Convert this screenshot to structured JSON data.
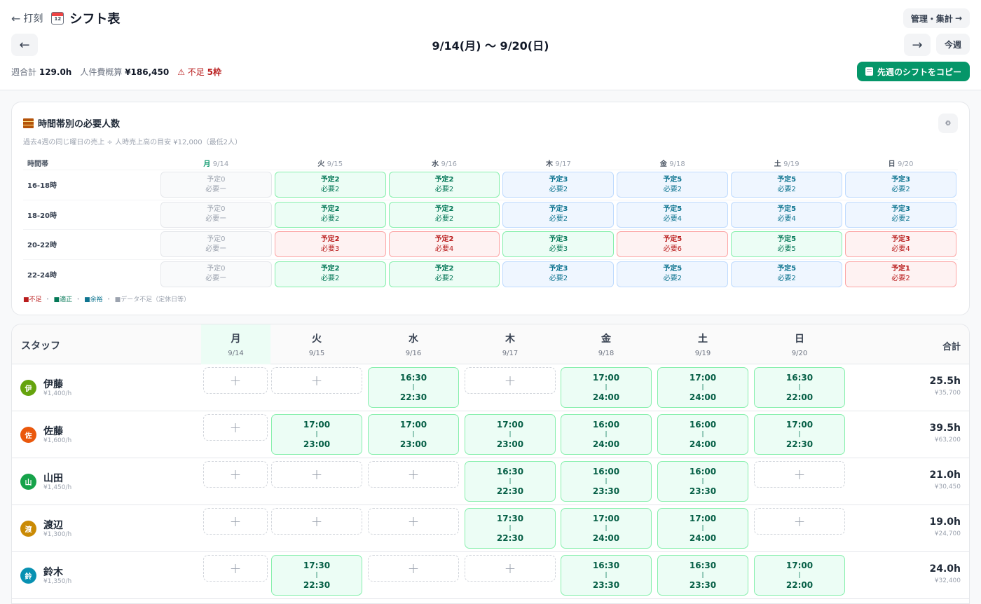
{
  "header": {
    "back_label": "打刻",
    "title": "シフト表",
    "mgmt_label": "管理・集計",
    "week_range": "9/14(月) 〜 9/20(日)",
    "this_week_label": "今週",
    "weekly_total_label": "週合計",
    "weekly_total_value": "129.0h",
    "labor_cost_label": "人件費概算",
    "labor_cost_value": "¥186,450",
    "shortage_label": "不足",
    "shortage_value": "5枠",
    "copy_button_label": "先週のシフトをコピー"
  },
  "requirements": {
    "title": "時間帯別の必要人数",
    "subtitle": "過去4週の同じ曜日の売上 ÷ 人時売上高の目安 ¥12,000（最低2人）",
    "time_band_label": "時間帯",
    "days": [
      {
        "w": "月",
        "d": "9/14",
        "today": true
      },
      {
        "w": "火",
        "d": "9/15"
      },
      {
        "w": "水",
        "d": "9/16"
      },
      {
        "w": "木",
        "d": "9/17"
      },
      {
        "w": "金",
        "d": "9/18"
      },
      {
        "w": "土",
        "d": "9/19"
      },
      {
        "w": "日",
        "d": "9/20"
      }
    ],
    "rows": [
      {
        "slot": "16-18時",
        "cells": [
          {
            "p": "予定0",
            "n": "必要ー",
            "s": "gray"
          },
          {
            "p": "予定2",
            "n": "必要2",
            "s": "green"
          },
          {
            "p": "予定2",
            "n": "必要2",
            "s": "green"
          },
          {
            "p": "予定3",
            "n": "必要2",
            "s": "blue"
          },
          {
            "p": "予定5",
            "n": "必要2",
            "s": "blue"
          },
          {
            "p": "予定5",
            "n": "必要2",
            "s": "blue"
          },
          {
            "p": "予定3",
            "n": "必要2",
            "s": "blue"
          }
        ]
      },
      {
        "slot": "18-20時",
        "cells": [
          {
            "p": "予定0",
            "n": "必要ー",
            "s": "gray"
          },
          {
            "p": "予定2",
            "n": "必要2",
            "s": "green"
          },
          {
            "p": "予定2",
            "n": "必要2",
            "s": "green"
          },
          {
            "p": "予定3",
            "n": "必要2",
            "s": "blue"
          },
          {
            "p": "予定5",
            "n": "必要4",
            "s": "blue"
          },
          {
            "p": "予定5",
            "n": "必要4",
            "s": "blue"
          },
          {
            "p": "予定3",
            "n": "必要2",
            "s": "blue"
          }
        ]
      },
      {
        "slot": "20-22時",
        "cells": [
          {
            "p": "予定0",
            "n": "必要ー",
            "s": "gray"
          },
          {
            "p": "予定2",
            "n": "必要3",
            "s": "red"
          },
          {
            "p": "予定2",
            "n": "必要4",
            "s": "red"
          },
          {
            "p": "予定3",
            "n": "必要3",
            "s": "green"
          },
          {
            "p": "予定5",
            "n": "必要6",
            "s": "red"
          },
          {
            "p": "予定5",
            "n": "必要5",
            "s": "green"
          },
          {
            "p": "予定3",
            "n": "必要4",
            "s": "red"
          }
        ]
      },
      {
        "slot": "22-24時",
        "cells": [
          {
            "p": "予定0",
            "n": "必要ー",
            "s": "gray"
          },
          {
            "p": "予定2",
            "n": "必要2",
            "s": "green"
          },
          {
            "p": "予定2",
            "n": "必要2",
            "s": "green"
          },
          {
            "p": "予定3",
            "n": "必要2",
            "s": "blue"
          },
          {
            "p": "予定5",
            "n": "必要2",
            "s": "blue"
          },
          {
            "p": "予定5",
            "n": "必要2",
            "s": "blue"
          },
          {
            "p": "予定1",
            "n": "必要2",
            "s": "red"
          }
        ]
      }
    ],
    "legend": {
      "short": "不足",
      "ok": "適正",
      "surplus": "余裕",
      "nodata": "データ不足（定休日等）",
      "sep": "・"
    }
  },
  "staff_table": {
    "staff_label": "スタッフ",
    "total_label": "合計",
    "days": [
      {
        "w": "月",
        "d": "9/14",
        "today": true
      },
      {
        "w": "火",
        "d": "9/15"
      },
      {
        "w": "水",
        "d": "9/16"
      },
      {
        "w": "木",
        "d": "9/17"
      },
      {
        "w": "金",
        "d": "9/18"
      },
      {
        "w": "土",
        "d": "9/19"
      },
      {
        "w": "日",
        "d": "9/20"
      }
    ],
    "staff": [
      {
        "initial": "伊",
        "name": "伊藤",
        "rate": "¥1,400/h",
        "color": "#65a30d",
        "hours": "25.5h",
        "cost": "¥35,700",
        "shifts": [
          null,
          null,
          [
            "16:30",
            "22:30"
          ],
          null,
          [
            "17:00",
            "24:00"
          ],
          [
            "17:00",
            "24:00"
          ],
          [
            "16:30",
            "22:00"
          ]
        ]
      },
      {
        "initial": "佐",
        "name": "佐藤",
        "rate": "¥1,600/h",
        "color": "#ea580c",
        "hours": "39.5h",
        "cost": "¥63,200",
        "shifts": [
          null,
          [
            "17:00",
            "23:00"
          ],
          [
            "17:00",
            "23:00"
          ],
          [
            "17:00",
            "23:00"
          ],
          [
            "16:00",
            "24:00"
          ],
          [
            "16:00",
            "24:00"
          ],
          [
            "17:00",
            "22:30"
          ]
        ]
      },
      {
        "initial": "山",
        "name": "山田",
        "rate": "¥1,450/h",
        "color": "#16a34a",
        "hours": "21.0h",
        "cost": "¥30,450",
        "shifts": [
          null,
          null,
          null,
          [
            "16:30",
            "22:30"
          ],
          [
            "16:00",
            "23:30"
          ],
          [
            "16:00",
            "23:30"
          ],
          null
        ]
      },
      {
        "initial": "渡",
        "name": "渡辺",
        "rate": "¥1,300/h",
        "color": "#ca8a04",
        "hours": "19.0h",
        "cost": "¥24,700",
        "shifts": [
          null,
          null,
          null,
          [
            "17:30",
            "22:30"
          ],
          [
            "17:00",
            "24:00"
          ],
          [
            "17:00",
            "24:00"
          ],
          null
        ]
      },
      {
        "initial": "鈴",
        "name": "鈴木",
        "rate": "¥1,350/h",
        "color": "#0891b2",
        "hours": "24.0h",
        "cost": "¥32,400",
        "shifts": [
          null,
          [
            "17:30",
            "22:30"
          ],
          null,
          null,
          [
            "16:30",
            "23:30"
          ],
          [
            "16:30",
            "23:30"
          ],
          [
            "17:00",
            "22:00"
          ]
        ]
      }
    ],
    "separator": "|",
    "add_glyph": "+"
  }
}
